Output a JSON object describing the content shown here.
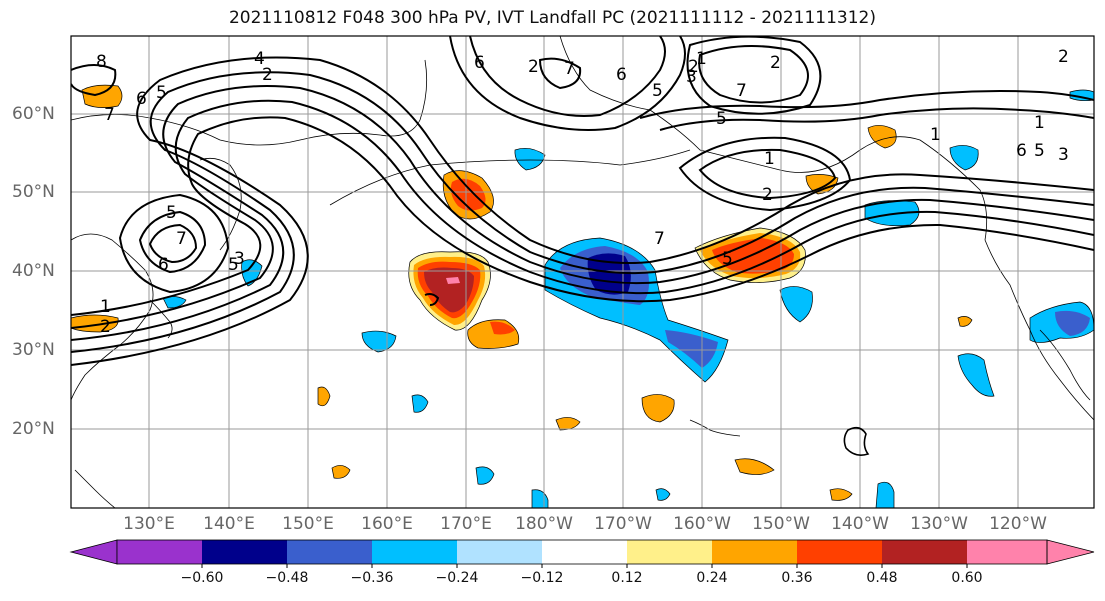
{
  "title": "2021110812 F048 300 hPa PV, IVT Landfall PC (2021111112 - 2021111312)",
  "map": {
    "lat_labels": [
      "60°N",
      "50°N",
      "40°N",
      "30°N",
      "20°N"
    ],
    "lon_labels": [
      "130°E",
      "140°E",
      "150°E",
      "160°E",
      "170°E",
      "180°W",
      "170°W",
      "160°W",
      "150°W",
      "140°W",
      "130°W",
      "120°W"
    ],
    "contour_labels": [
      "8",
      "4",
      "2",
      "7",
      "6",
      "5",
      "5",
      "7",
      "6",
      "5",
      "3",
      "2",
      "1",
      "6",
      "2",
      "7",
      "6",
      "5",
      "3",
      "2",
      "1",
      "1",
      "2",
      "5",
      "7",
      "5",
      "2",
      "1",
      "6",
      "5",
      "3",
      "1",
      "7",
      "2"
    ],
    "colors": {
      "neg_060": "#9a32cd",
      "neg_048": "#00008b",
      "neg_036": "#3a5fcd",
      "neg_024": "#00bfff",
      "neg_012": "#b0e2ff",
      "zero": "#ffffff",
      "pos_012": "#fff08a",
      "pos_024": "#ffa500",
      "pos_036": "#ff4000",
      "pos_048": "#b22222",
      "pos_060": "#ff82ab"
    }
  },
  "colorbar": {
    "ticks": [
      "−0.60",
      "−0.48",
      "−0.36",
      "−0.24",
      "−0.12",
      "0.12",
      "0.24",
      "0.36",
      "0.48",
      "0.60"
    ],
    "colors": [
      "#9a32cd",
      "#00008b",
      "#3a5fcd",
      "#00bfff",
      "#b0e2ff",
      "#ffffff",
      "#fff08a",
      "#ffa500",
      "#ff4000",
      "#b22222",
      "#ff82ab"
    ]
  }
}
